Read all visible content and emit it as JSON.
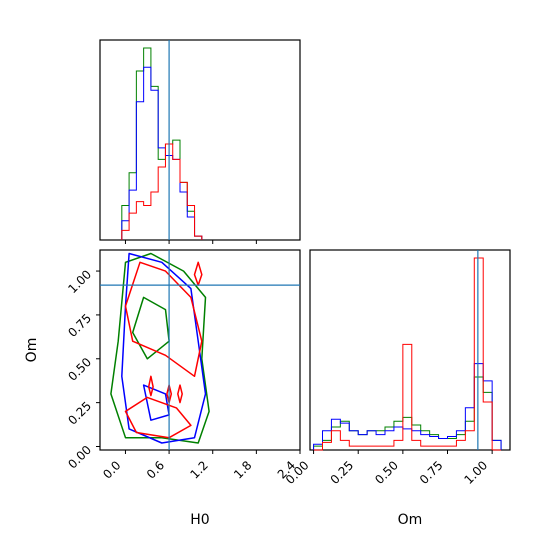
{
  "chart_data": {
    "type": "corner",
    "parameters": [
      "H0",
      "Om"
    ],
    "truth": {
      "H0": 0.6,
      "Om": 0.92
    },
    "truth_color": "#1f77b4",
    "series_colors": [
      "#008000",
      "#0000ff",
      "#ff0000"
    ],
    "panels": {
      "h0_hist": {
        "xlim": [
          -0.35,
          2.4
        ],
        "x_ticks": [
          "0.0",
          "0.6",
          "1.2",
          "1.8",
          "2.4"
        ],
        "series": [
          {
            "color": "#008000",
            "edges": [
              -0.05,
              0.05,
              0.15,
              0.25,
              0.35,
              0.45,
              0.55,
              0.65,
              0.75,
              0.85,
              0.95,
              1.05
            ],
            "counts": [
              0.18,
              0.35,
              0.88,
              1.0,
              0.8,
              0.42,
              0.5,
              0.52,
              0.3,
              0.15,
              0.02
            ]
          },
          {
            "color": "#0000ff",
            "edges": [
              -0.05,
              0.05,
              0.15,
              0.25,
              0.35,
              0.45,
              0.55,
              0.65,
              0.75,
              0.85,
              0.95,
              1.05
            ],
            "counts": [
              0.1,
              0.26,
              0.72,
              0.9,
              0.78,
              0.48,
              0.44,
              0.42,
              0.25,
              0.12,
              0.02
            ]
          },
          {
            "color": "#ff0000",
            "edges": [
              -0.05,
              0.05,
              0.15,
              0.25,
              0.35,
              0.45,
              0.55,
              0.65,
              0.75,
              0.85,
              0.95,
              1.05
            ],
            "counts": [
              0.05,
              0.14,
              0.2,
              0.18,
              0.25,
              0.38,
              0.5,
              0.42,
              0.3,
              0.18,
              0.02
            ]
          }
        ]
      },
      "joint": {
        "xlim": [
          -0.35,
          2.4
        ],
        "ylim": [
          -0.02,
          1.12
        ],
        "x_ticks": [
          "0.0",
          "0.6",
          "1.2",
          "1.8",
          "2.4"
        ],
        "y_ticks": [
          "0.00",
          "0.25",
          "0.50",
          "0.75",
          "1.00"
        ],
        "contours": [
          {
            "color": "#008000",
            "points": [
              [
                0.0,
                1.05
              ],
              [
                0.35,
                1.1
              ],
              [
                0.8,
                1.0
              ],
              [
                1.1,
                0.85
              ],
              [
                1.05,
                0.5
              ],
              [
                1.15,
                0.2
              ],
              [
                1.0,
                0.02
              ],
              [
                0.5,
                0.05
              ],
              [
                0.0,
                0.05
              ],
              [
                -0.2,
                0.3
              ],
              [
                -0.1,
                0.6
              ]
            ]
          },
          {
            "color": "#008000",
            "points": [
              [
                0.25,
                0.85
              ],
              [
                0.55,
                0.78
              ],
              [
                0.6,
                0.6
              ],
              [
                0.3,
                0.5
              ],
              [
                0.1,
                0.65
              ]
            ]
          },
          {
            "color": "#0000ff",
            "points": [
              [
                0.05,
                1.1
              ],
              [
                0.5,
                1.05
              ],
              [
                0.9,
                0.9
              ],
              [
                1.0,
                0.6
              ],
              [
                1.1,
                0.3
              ],
              [
                0.95,
                0.05
              ],
              [
                0.5,
                0.02
              ],
              [
                0.05,
                0.1
              ],
              [
                -0.05,
                0.4
              ],
              [
                0.0,
                0.8
              ]
            ]
          },
          {
            "color": "#0000ff",
            "points": [
              [
                0.25,
                0.35
              ],
              [
                0.55,
                0.3
              ],
              [
                0.6,
                0.18
              ],
              [
                0.35,
                0.15
              ]
            ]
          },
          {
            "color": "#ff0000",
            "points": [
              [
                0.2,
                1.05
              ],
              [
                0.55,
                1.0
              ],
              [
                0.9,
                0.85
              ],
              [
                1.05,
                0.6
              ],
              [
                0.95,
                0.4
              ],
              [
                0.55,
                0.52
              ],
              [
                0.1,
                0.6
              ],
              [
                0.0,
                0.8
              ]
            ]
          },
          {
            "color": "#ff0000",
            "points": [
              [
                0.0,
                0.2
              ],
              [
                0.3,
                0.28
              ],
              [
                0.7,
                0.22
              ],
              [
                0.9,
                0.12
              ],
              [
                0.6,
                0.05
              ],
              [
                0.15,
                0.08
              ]
            ]
          },
          {
            "color": "#ff0000",
            "points": [
              [
                1.0,
                1.05
              ],
              [
                1.05,
                0.98
              ],
              [
                1.0,
                0.92
              ],
              [
                0.95,
                0.98
              ]
            ]
          },
          {
            "color": "#ff0000",
            "points": [
              [
                0.35,
                0.4
              ],
              [
                0.38,
                0.34
              ],
              [
                0.35,
                0.29
              ],
              [
                0.32,
                0.34
              ]
            ]
          },
          {
            "color": "#ff0000",
            "points": [
              [
                0.6,
                0.35
              ],
              [
                0.63,
                0.3
              ],
              [
                0.6,
                0.25
              ],
              [
                0.57,
                0.3
              ]
            ]
          },
          {
            "color": "#ff0000",
            "points": [
              [
                0.75,
                0.35
              ],
              [
                0.78,
                0.3
              ],
              [
                0.75,
                0.25
              ],
              [
                0.72,
                0.3
              ]
            ]
          }
        ]
      },
      "om_hist": {
        "xlim": [
          -0.02,
          1.1
        ],
        "x_ticks": [
          "0.00",
          "0.25",
          "0.50",
          "0.75",
          "1.00"
        ],
        "series": [
          {
            "color": "#008000",
            "edges": [
              0.0,
              0.05,
              0.1,
              0.15,
              0.2,
              0.25,
              0.3,
              0.35,
              0.4,
              0.45,
              0.5,
              0.55,
              0.6,
              0.65,
              0.7,
              0.75,
              0.8,
              0.85,
              0.9,
              0.95,
              1.0,
              1.05
            ],
            "counts": [
              0.02,
              0.05,
              0.12,
              0.15,
              0.1,
              0.08,
              0.1,
              0.1,
              0.12,
              0.15,
              0.17,
              0.13,
              0.1,
              0.08,
              0.06,
              0.06,
              0.08,
              0.15,
              0.38,
              0.3,
              0.05
            ]
          },
          {
            "color": "#0000ff",
            "edges": [
              0.0,
              0.05,
              0.1,
              0.15,
              0.2,
              0.25,
              0.3,
              0.35,
              0.4,
              0.45,
              0.5,
              0.55,
              0.6,
              0.65,
              0.7,
              0.75,
              0.8,
              0.85,
              0.9,
              0.95,
              1.0,
              1.05
            ],
            "counts": [
              0.03,
              0.1,
              0.16,
              0.14,
              0.1,
              0.08,
              0.1,
              0.08,
              0.1,
              0.12,
              0.11,
              0.1,
              0.08,
              0.07,
              0.06,
              0.07,
              0.1,
              0.22,
              0.45,
              0.36,
              0.05
            ]
          },
          {
            "color": "#ff0000",
            "edges": [
              0.0,
              0.05,
              0.1,
              0.15,
              0.2,
              0.25,
              0.3,
              0.35,
              0.4,
              0.45,
              0.5,
              0.55,
              0.6,
              0.65,
              0.7,
              0.75,
              0.8,
              0.85,
              0.9,
              0.95,
              1.0,
              1.05
            ],
            "counts": [
              0.0,
              0.04,
              0.1,
              0.05,
              0.02,
              0.02,
              0.02,
              0.02,
              0.02,
              0.05,
              0.55,
              0.05,
              0.02,
              0.02,
              0.02,
              0.02,
              0.05,
              0.1,
              1.0,
              0.25,
              0.0
            ]
          }
        ]
      }
    },
    "xlabel_h0": "H0",
    "xlabel_om": "Om",
    "ylabel_om": "Om"
  }
}
